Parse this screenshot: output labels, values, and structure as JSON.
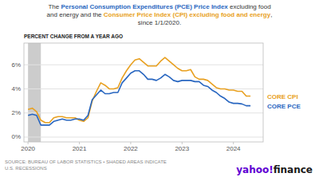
{
  "chart_data": {
    "type": "line",
    "title": [
      [
        {
          "text": "The ",
          "color": "#333333"
        },
        {
          "text": "Personal Consumption Expenditures (PCE) Price Index",
          "color": "#2866c0"
        },
        {
          "text": " excluding food",
          "color": "#333333"
        }
      ],
      [
        {
          "text": "and energy and the ",
          "color": "#333333"
        },
        {
          "text": "Consumer Price Index (CPI) excluding food and energy",
          "color": "#e8a020"
        },
        {
          "text": ",",
          "color": "#333333"
        }
      ],
      [
        {
          "text": "since 1/1/2020.",
          "color": "#333333"
        }
      ]
    ],
    "ylabel": "PERCENT CHANGE FROM A YEAR AGO",
    "annotations": [
      {
        "text": "SOURCE: BUREAU OF LABOR STATISTICS • SHADED AREAS INDICATE\nU.S. RECESSIONS",
        "color": "#888888"
      },
      {
        "text": "yahoo!",
        "color": "#6001d2"
      },
      {
        "text": "finance",
        "color": "#1a1a1a"
      }
    ],
    "shaded_areas": [
      {
        "start": 2020.0,
        "end": 2020.25,
        "color": "#cccccc"
      }
    ],
    "x": [
      2020.0,
      2020.083,
      2020.167,
      2020.25,
      2020.333,
      2020.417,
      2020.5,
      2020.583,
      2020.667,
      2020.75,
      2020.833,
      2020.917,
      2021.0,
      2021.083,
      2021.167,
      2021.25,
      2021.333,
      2021.417,
      2021.5,
      2021.583,
      2021.667,
      2021.75,
      2021.833,
      2021.917,
      2022.0,
      2022.083,
      2022.167,
      2022.25,
      2022.333,
      2022.417,
      2022.5,
      2022.583,
      2022.667,
      2022.75,
      2022.833,
      2022.917,
      2023.0,
      2023.083,
      2023.167,
      2023.25,
      2023.333,
      2023.417,
      2023.5,
      2023.583,
      2023.667,
      2023.75,
      2023.833,
      2023.917,
      2024.0,
      2024.083,
      2024.167,
      2024.25,
      2024.333
    ],
    "series": [
      {
        "name": "CORE CPI",
        "color": "#e8a020",
        "values": [
          2.3,
          2.4,
          2.1,
          1.4,
          1.2,
          1.2,
          1.6,
          1.7,
          1.7,
          1.6,
          1.6,
          1.6,
          1.4,
          1.3,
          1.6,
          3.0,
          3.8,
          4.5,
          4.3,
          4.0,
          4.0,
          4.1,
          4.9,
          5.5,
          6.0,
          6.4,
          6.5,
          6.2,
          5.9,
          5.9,
          5.9,
          6.3,
          6.6,
          6.3,
          6.0,
          5.7,
          5.5,
          5.5,
          5.6,
          5.0,
          4.8,
          4.8,
          4.7,
          4.4,
          4.1,
          4.0,
          4.0,
          3.9,
          3.9,
          3.8,
          3.8,
          3.4,
          3.4
        ]
      },
      {
        "name": "CORE PCE",
        "color": "#2866c0",
        "values": [
          1.8,
          1.9,
          1.8,
          1.0,
          1.0,
          1.0,
          1.3,
          1.4,
          1.5,
          1.4,
          1.4,
          1.5,
          1.5,
          1.4,
          1.8,
          3.1,
          3.5,
          3.9,
          3.6,
          3.6,
          3.7,
          3.7,
          4.5,
          4.9,
          5.3,
          5.5,
          5.5,
          5.2,
          4.8,
          4.8,
          4.7,
          4.9,
          5.2,
          5.0,
          4.7,
          4.6,
          4.7,
          4.7,
          4.7,
          4.6,
          4.6,
          4.3,
          4.2,
          3.9,
          3.7,
          3.4,
          3.2,
          2.9,
          2.8,
          2.8,
          2.75,
          2.6,
          2.6
        ]
      }
    ],
    "xlim": [
      2019.92,
      2024.58
    ],
    "xticks": [
      2020,
      2021,
      2022,
      2023,
      2024
    ],
    "ylim": [
      -0.4,
      7.8
    ],
    "yticks": [
      {
        "value": 0,
        "label": "0%"
      },
      {
        "value": 2,
        "label": "2%"
      },
      {
        "value": 4,
        "label": "4%"
      },
      {
        "value": 6,
        "label": "6%"
      }
    ],
    "grid": true
  }
}
